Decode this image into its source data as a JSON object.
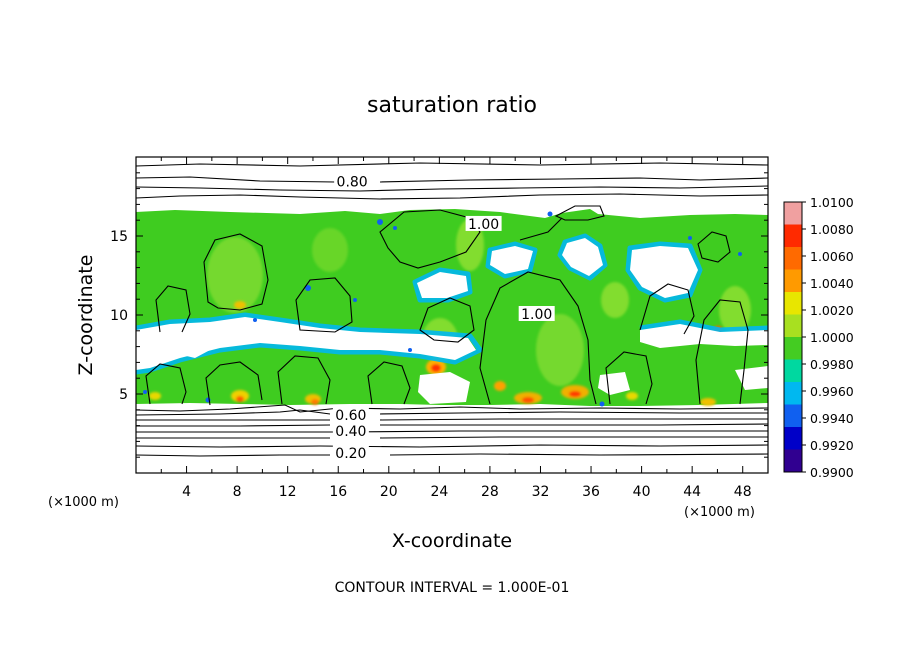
{
  "chart_data": {
    "type": "heatmap",
    "title": "saturation ratio",
    "xlabel": "X-coordinate",
    "ylabel": "Z-coordinate",
    "x_unit_left": "(×1000 m)",
    "x_unit_right": "(×1000 m)",
    "footer": "CONTOUR INTERVAL = 1.000E-01",
    "xlim": [
      0,
      50
    ],
    "ylim": [
      0,
      20
    ],
    "x_ticks": [
      4,
      8,
      12,
      16,
      20,
      24,
      28,
      32,
      36,
      40,
      44,
      48
    ],
    "x_tick_labels": [
      "4",
      "8",
      "12",
      "16",
      "20",
      "24",
      "28",
      "32",
      "36",
      "40",
      "44",
      "48"
    ],
    "y_ticks": [
      5,
      10,
      15
    ],
    "y_tick_labels": [
      "5",
      "10",
      "15"
    ],
    "colorbar": {
      "min": 0.99,
      "max": 1.01,
      "labels": [
        "1.0100",
        "1.0080",
        "1.0060",
        "1.0040",
        "1.0020",
        "1.0000",
        "0.9980",
        "0.9960",
        "0.9940",
        "0.9920",
        "0.9900"
      ],
      "colors": [
        "#f0a0a0",
        "#ff2a00",
        "#ff6a00",
        "#ff9a00",
        "#e8e600",
        "#a8e020",
        "#44cc22",
        "#00d8a0",
        "#00b8f0",
        "#1060f0",
        "#0000c8",
        "#300090"
      ]
    },
    "contour_labels": [
      {
        "text": "0.80",
        "x": 17.1,
        "z": 18.4
      },
      {
        "text": "1.00",
        "x": 27.5,
        "z": 15.7
      },
      {
        "text": "1.00",
        "x": 31.7,
        "z": 10.0
      },
      {
        "text": "0.60",
        "x": 17.0,
        "z": 3.6
      },
      {
        "text": "0.40",
        "x": 17.0,
        "z": 2.6
      },
      {
        "text": "0.20",
        "x": 17.0,
        "z": 1.2
      }
    ],
    "description_features": {
      "stable_layer_base_z": 4.0,
      "cloud_top_z": 16.8,
      "upper_contours_z": [
        17.5,
        18.2,
        18.8,
        19.6
      ],
      "lower_contours_z": [
        0.8,
        1.4,
        2.0,
        2.4,
        2.8,
        3.1,
        3.4,
        3.7
      ]
    }
  }
}
